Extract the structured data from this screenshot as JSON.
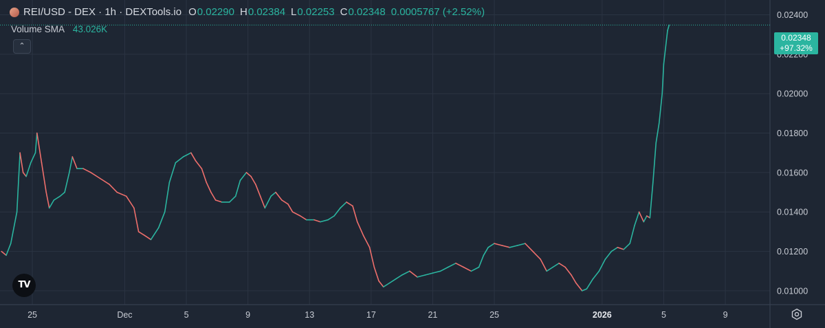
{
  "header": {
    "title": "REI/USD - DEX · 1h · DEXTools.io",
    "ohlc": [
      {
        "key": "O",
        "value": "0.02290"
      },
      {
        "key": "H",
        "value": "0.02384"
      },
      {
        "key": "L",
        "value": "0.02253"
      },
      {
        "key": "C",
        "value": "0.02348"
      }
    ],
    "change": "0.0005767 (+2.52%)",
    "volume_label": "Volume SMA",
    "volume_value": "43.026K"
  },
  "price_tag": {
    "price": "0.02348",
    "percent": "+97.32%"
  },
  "colors": {
    "background": "#1e2633",
    "up": "#2bb5a0",
    "down": "#ef6f6c",
    "grid": "#2b3442",
    "text": "#c8ccd4"
  },
  "icons": {
    "collapse": "chevron-up-icon",
    "logo": "tradingview-logo-icon",
    "settings": "gear-icon"
  },
  "chart_data": {
    "type": "line",
    "y_ticks": [
      {
        "label": "0.02400",
        "value": 0.024
      },
      {
        "label": "0.02200",
        "value": 0.022
      },
      {
        "label": "0.02000",
        "value": 0.02
      },
      {
        "label": "0.01800",
        "value": 0.018
      },
      {
        "label": "0.01600",
        "value": 0.016
      },
      {
        "label": "0.01400",
        "value": 0.014
      },
      {
        "label": "0.01200",
        "value": 0.012
      },
      {
        "label": "0.01000",
        "value": 0.01
      }
    ],
    "ylim": [
      0.0093,
      0.02475
    ],
    "x_ticks": [
      {
        "label": "25",
        "day": 0,
        "bold": false
      },
      {
        "label": "Dec",
        "day": 6,
        "bold": false
      },
      {
        "label": "5",
        "day": 10,
        "bold": false
      },
      {
        "label": "9",
        "day": 14,
        "bold": false
      },
      {
        "label": "13",
        "day": 18,
        "bold": false
      },
      {
        "label": "17",
        "day": 22,
        "bold": false
      },
      {
        "label": "21",
        "day": 26,
        "bold": false
      },
      {
        "label": "25",
        "day": 30,
        "bold": false
      },
      {
        "label": "2026",
        "day": 37,
        "bold": true
      },
      {
        "label": "5",
        "day": 41,
        "bold": false
      },
      {
        "label": "9",
        "day": 45,
        "bold": false
      }
    ],
    "xlim": [
      -2.1,
      47.9
    ],
    "price_series": [
      [
        -2.0,
        0.012
      ],
      [
        -1.7,
        0.0118
      ],
      [
        -1.4,
        0.0124
      ],
      [
        -1.0,
        0.014
      ],
      [
        -0.8,
        0.017
      ],
      [
        -0.6,
        0.016
      ],
      [
        -0.4,
        0.0158
      ],
      [
        -0.1,
        0.0165
      ],
      [
        0.2,
        0.017
      ],
      [
        0.3,
        0.018
      ],
      [
        0.6,
        0.0165
      ],
      [
        0.9,
        0.015
      ],
      [
        1.1,
        0.0142
      ],
      [
        1.4,
        0.0146
      ],
      [
        1.8,
        0.0148
      ],
      [
        2.1,
        0.015
      ],
      [
        2.4,
        0.016
      ],
      [
        2.6,
        0.0168
      ],
      [
        2.9,
        0.0162
      ],
      [
        3.3,
        0.0162
      ],
      [
        3.8,
        0.016
      ],
      [
        4.4,
        0.0157
      ],
      [
        5.0,
        0.0154
      ],
      [
        5.5,
        0.015
      ],
      [
        6.1,
        0.0148
      ],
      [
        6.6,
        0.0142
      ],
      [
        6.9,
        0.013
      ],
      [
        7.3,
        0.0128
      ],
      [
        7.7,
        0.0126
      ],
      [
        8.2,
        0.0132
      ],
      [
        8.6,
        0.014
      ],
      [
        8.9,
        0.0155
      ],
      [
        9.3,
        0.0165
      ],
      [
        9.8,
        0.0168
      ],
      [
        10.3,
        0.017
      ],
      [
        10.6,
        0.0166
      ],
      [
        11.0,
        0.0162
      ],
      [
        11.3,
        0.0155
      ],
      [
        11.6,
        0.015
      ],
      [
        11.9,
        0.0146
      ],
      [
        12.3,
        0.0145
      ],
      [
        12.8,
        0.0145
      ],
      [
        13.2,
        0.0148
      ],
      [
        13.5,
        0.0156
      ],
      [
        13.9,
        0.016
      ],
      [
        14.2,
        0.0158
      ],
      [
        14.5,
        0.0154
      ],
      [
        14.8,
        0.0148
      ],
      [
        15.1,
        0.0142
      ],
      [
        15.5,
        0.0148
      ],
      [
        15.8,
        0.015
      ],
      [
        16.2,
        0.0146
      ],
      [
        16.6,
        0.0144
      ],
      [
        16.9,
        0.014
      ],
      [
        17.4,
        0.0138
      ],
      [
        17.8,
        0.0136
      ],
      [
        18.3,
        0.0136
      ],
      [
        18.7,
        0.0135
      ],
      [
        19.2,
        0.0136
      ],
      [
        19.6,
        0.0138
      ],
      [
        20.0,
        0.0142
      ],
      [
        20.4,
        0.0145
      ],
      [
        20.8,
        0.0143
      ],
      [
        21.1,
        0.0135
      ],
      [
        21.5,
        0.0128
      ],
      [
        21.9,
        0.0122
      ],
      [
        22.2,
        0.0112
      ],
      [
        22.5,
        0.0105
      ],
      [
        22.8,
        0.0102
      ],
      [
        23.2,
        0.0104
      ],
      [
        23.6,
        0.0106
      ],
      [
        24.0,
        0.0108
      ],
      [
        24.5,
        0.011
      ],
      [
        25.0,
        0.0107
      ],
      [
        25.5,
        0.0108
      ],
      [
        26.0,
        0.0109
      ],
      [
        26.5,
        0.011
      ],
      [
        27.0,
        0.0112
      ],
      [
        27.5,
        0.0114
      ],
      [
        28.0,
        0.0112
      ],
      [
        28.5,
        0.011
      ],
      [
        29.0,
        0.0112
      ],
      [
        29.3,
        0.0118
      ],
      [
        29.6,
        0.0122
      ],
      [
        30.0,
        0.0124
      ],
      [
        30.5,
        0.0123
      ],
      [
        31.0,
        0.0122
      ],
      [
        31.5,
        0.0123
      ],
      [
        32.0,
        0.0124
      ],
      [
        32.5,
        0.012
      ],
      [
        33.0,
        0.0116
      ],
      [
        33.4,
        0.011
      ],
      [
        33.8,
        0.0112
      ],
      [
        34.2,
        0.0114
      ],
      [
        34.6,
        0.0112
      ],
      [
        35.0,
        0.0108
      ],
      [
        35.3,
        0.0104
      ],
      [
        35.7,
        0.01
      ],
      [
        36.0,
        0.0101
      ],
      [
        36.4,
        0.0106
      ],
      [
        36.8,
        0.011
      ],
      [
        37.2,
        0.0116
      ],
      [
        37.6,
        0.012
      ],
      [
        38.0,
        0.0122
      ],
      [
        38.4,
        0.0121
      ],
      [
        38.8,
        0.0124
      ],
      [
        39.1,
        0.0133
      ],
      [
        39.4,
        0.014
      ],
      [
        39.7,
        0.0135
      ],
      [
        39.9,
        0.0138
      ],
      [
        40.1,
        0.0137
      ],
      [
        40.3,
        0.0155
      ],
      [
        40.5,
        0.0175
      ],
      [
        40.7,
        0.0185
      ],
      [
        40.9,
        0.02
      ],
      [
        41.0,
        0.0215
      ],
      [
        41.1,
        0.0222
      ],
      [
        41.25,
        0.0232
      ],
      [
        41.35,
        0.02348
      ]
    ],
    "last_price": 0.02348
  }
}
